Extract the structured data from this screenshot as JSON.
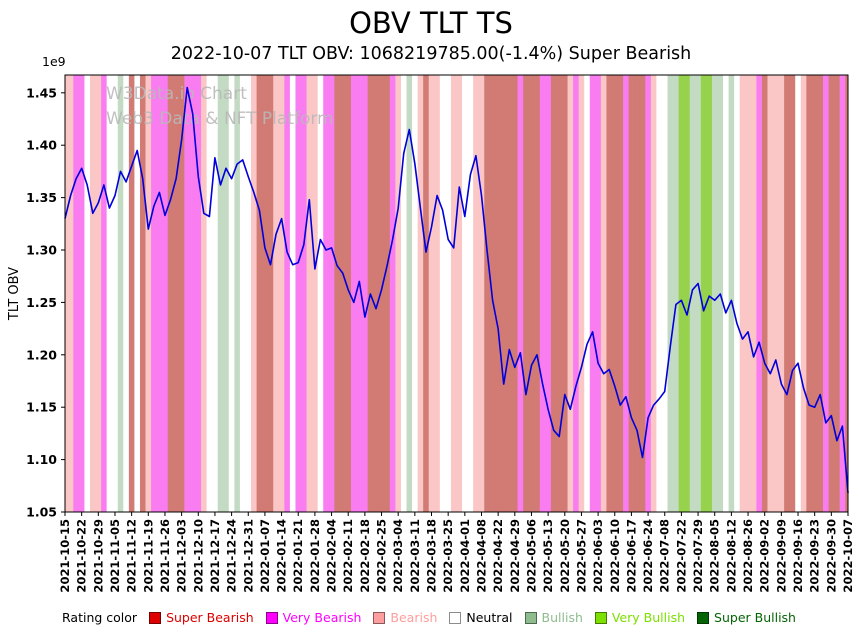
{
  "figure": {
    "title": "OBV TLT TS",
    "subtitle": "2022-10-07 TLT OBV: 1068219785.00(-1.4%) Super Bearish",
    "watermark_line1": "W3Data.io Chart",
    "watermark_line2": "Web3 Data & NFT Platform",
    "scale_note": "1e9",
    "ylabel": "TLT OBV"
  },
  "legend": {
    "title": "Rating color",
    "items": [
      {
        "label": "Super Bearish",
        "color": "#dd0000"
      },
      {
        "label": "Very Bearish",
        "color": "#ff00ff"
      },
      {
        "label": "Bearish",
        "color": "#ff9e9e"
      },
      {
        "label": "Neutral",
        "color": "#ffffff",
        "text_color": "#000000"
      },
      {
        "label": "Bullish",
        "color": "#8fbc8f"
      },
      {
        "label": "Very Bullish",
        "color": "#7ce000"
      },
      {
        "label": "Super Bullish",
        "color": "#046404"
      }
    ]
  },
  "chart_data": {
    "type": "line",
    "title": "OBV TLT TS",
    "xlabel": "",
    "ylabel": "TLT OBV",
    "y_unit_multiplier": 1000000000,
    "ylim": [
      1.05,
      1.467
    ],
    "yticks": [
      1.05,
      1.1,
      1.15,
      1.2,
      1.25,
      1.3,
      1.35,
      1.4,
      1.45
    ],
    "yticklabels": [
      "1.05",
      "1.10",
      "1.15",
      "1.20",
      "1.25",
      "1.30",
      "1.35",
      "1.40",
      "1.45"
    ],
    "grid": false,
    "legend_position": "bottom",
    "line_color": "#0000dd",
    "points_per_tick": 3,
    "xticklabels": [
      "2021-10-15",
      "2021-10-22",
      "2021-10-29",
      "2021-11-05",
      "2021-11-12",
      "2021-11-19",
      "2021-11-26",
      "2021-12-03",
      "2021-12-10",
      "2021-12-17",
      "2021-12-24",
      "2021-12-31",
      "2022-01-07",
      "2022-01-14",
      "2022-01-21",
      "2022-01-28",
      "2022-02-04",
      "2022-02-11",
      "2022-02-18",
      "2022-02-25",
      "2022-03-04",
      "2022-03-11",
      "2022-03-18",
      "2022-03-25",
      "2022-04-01",
      "2022-04-08",
      "2022-04-22",
      "2022-04-29",
      "2022-05-06",
      "2022-05-13",
      "2022-05-20",
      "2022-05-27",
      "2022-06-03",
      "2022-06-10",
      "2022-06-17",
      "2022-06-24",
      "2022-07-08",
      "2022-07-22",
      "2022-07-29",
      "2022-08-05",
      "2022-08-12",
      "2022-08-26",
      "2022-09-02",
      "2022-09-09",
      "2022-09-16",
      "2022-09-23",
      "2022-09-30",
      "2022-10-07"
    ],
    "values": [
      1.33,
      1.352,
      1.368,
      1.378,
      1.362,
      1.335,
      1.345,
      1.362,
      1.34,
      1.352,
      1.375,
      1.365,
      1.38,
      1.395,
      1.368,
      1.32,
      1.342,
      1.355,
      1.333,
      1.348,
      1.368,
      1.405,
      1.455,
      1.43,
      1.37,
      1.335,
      1.332,
      1.388,
      1.362,
      1.378,
      1.368,
      1.382,
      1.386,
      1.37,
      1.355,
      1.338,
      1.302,
      1.286,
      1.315,
      1.33,
      1.298,
      1.286,
      1.288,
      1.305,
      1.348,
      1.282,
      1.31,
      1.3,
      1.302,
      1.285,
      1.278,
      1.262,
      1.25,
      1.27,
      1.236,
      1.258,
      1.244,
      1.262,
      1.285,
      1.31,
      1.34,
      1.392,
      1.415,
      1.382,
      1.34,
      1.298,
      1.322,
      1.352,
      1.338,
      1.31,
      1.302,
      1.36,
      1.332,
      1.372,
      1.39,
      1.352,
      1.3,
      1.252,
      1.225,
      1.172,
      1.205,
      1.188,
      1.202,
      1.162,
      1.19,
      1.2,
      1.172,
      1.148,
      1.128,
      1.122,
      1.162,
      1.148,
      1.17,
      1.188,
      1.21,
      1.222,
      1.192,
      1.182,
      1.186,
      1.17,
      1.152,
      1.16,
      1.14,
      1.128,
      1.102,
      1.14,
      1.152,
      1.158,
      1.165,
      1.208,
      1.248,
      1.252,
      1.238,
      1.262,
      1.268,
      1.242,
      1.256,
      1.252,
      1.258,
      1.24,
      1.252,
      1.23,
      1.215,
      1.222,
      1.198,
      1.212,
      1.192,
      1.182,
      1.195,
      1.172,
      1.162,
      1.185,
      1.192,
      1.168,
      1.152,
      1.15,
      1.162,
      1.135,
      1.142,
      1.118,
      1.132,
      1.068
    ],
    "ratings": [
      "B",
      "B",
      "VB",
      "VB",
      "N",
      "B",
      "B",
      "VB",
      "N",
      "N",
      "BU",
      "N",
      "SB",
      "N",
      "SB",
      "B",
      "VB",
      "VB",
      "VB",
      "SB",
      "SB",
      "SB",
      "VB",
      "VB",
      "VB",
      "B",
      "N",
      "N",
      "BU",
      "BU",
      "N",
      "BU",
      "N",
      "N",
      "B",
      "SB",
      "SB",
      "SB",
      "B",
      "B",
      "VB",
      "N",
      "VB",
      "VB",
      "B",
      "B",
      "N",
      "VB",
      "VB",
      "SB",
      "SB",
      "SB",
      "VB",
      "VB",
      "VB",
      "SB",
      "SB",
      "SB",
      "SB",
      "VB",
      "B",
      "N",
      "BU",
      "N",
      "B",
      "SB",
      "B",
      "B",
      "N",
      "N",
      "B",
      "B",
      "N",
      "N",
      "B",
      "B",
      "SB",
      "SB",
      "SB",
      "SB",
      "SB",
      "SB",
      "VB",
      "SB",
      "SB",
      "SB",
      "VB",
      "VB",
      "SB",
      "SB",
      "SB",
      "B",
      "VB",
      "B",
      "N",
      "VB",
      "VB",
      "B",
      "SB",
      "SB",
      "SB",
      "VB",
      "SB",
      "SB",
      "SB",
      "VB",
      "B",
      "N",
      "N",
      "BU",
      "BU",
      "VBU",
      "VBU",
      "BU",
      "BU",
      "VBU",
      "VBU",
      "BU",
      "BU",
      "N",
      "BU",
      "N",
      "B",
      "B",
      "B",
      "VB",
      "SB",
      "B",
      "B",
      "B",
      "SB",
      "SB",
      "N",
      "B",
      "SB",
      "SB",
      "SB",
      "VB",
      "SB",
      "SB",
      "VB",
      "SB"
    ],
    "band_colors": {
      "SB": "#d17b74",
      "VB": "#f97df0",
      "B": "#fbc6c6",
      "N": "#ffffff",
      "BU": "#c3dbc3",
      "VBU": "#96d24c",
      "SBU": "#4c9a4c"
    },
    "rating_names": {
      "SB": "Super Bearish",
      "VB": "Very Bearish",
      "B": "Bearish",
      "N": "Neutral",
      "BU": "Bullish",
      "VBU": "Very Bullish",
      "SBU": "Super Bullish"
    }
  }
}
